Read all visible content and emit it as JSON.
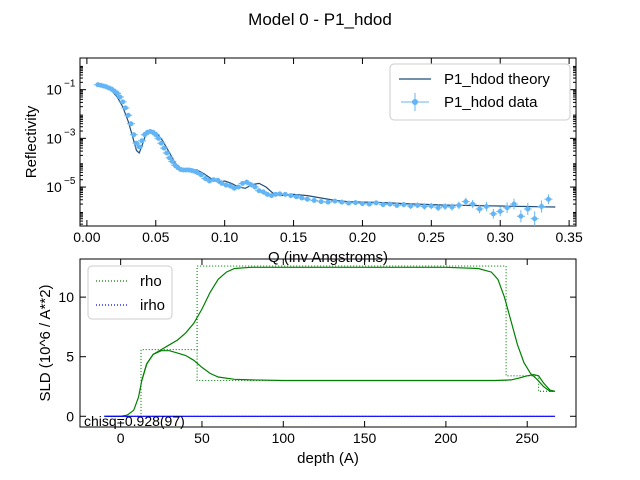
{
  "title": "Model 0 - P1_hdod",
  "chart_data": [
    {
      "type": "scatter",
      "xlabel": "Q (inv Angstroms)",
      "ylabel": "Reflectivity",
      "xlim": [
        -0.005,
        0.355
      ],
      "ylim_log10": [
        -6.6,
        0.3
      ],
      "yscale": "log",
      "legend": "top-right",
      "xticks": [
        0.0,
        0.05,
        0.1,
        0.15,
        0.2,
        0.25,
        0.3,
        0.35
      ],
      "xtick_labels": [
        "0.00",
        "0.05",
        "0.10",
        "0.15",
        "0.20",
        "0.25",
        "0.30",
        "0.35"
      ],
      "ytick_base": "10",
      "yticks_exp": [
        -1,
        -3,
        -5
      ],
      "ytick_exp_labels": [
        "−1",
        "−3",
        "−5"
      ],
      "series": [
        {
          "name": "P1_hdod theory",
          "kind": "line",
          "color": "#1f4e79",
          "x": [
            0.01,
            0.014,
            0.018,
            0.022,
            0.026,
            0.03,
            0.033,
            0.036,
            0.038,
            0.04,
            0.043,
            0.047,
            0.051,
            0.055,
            0.06,
            0.065,
            0.07,
            0.075,
            0.08,
            0.085,
            0.09,
            0.095,
            0.1,
            0.105,
            0.11,
            0.115,
            0.12,
            0.125,
            0.13,
            0.135,
            0.14,
            0.15,
            0.16,
            0.17,
            0.18,
            0.19,
            0.2,
            0.21,
            0.22,
            0.23,
            0.24,
            0.25,
            0.26,
            0.27,
            0.28,
            0.29,
            0.3,
            0.31,
            0.32,
            0.33,
            0.34
          ],
          "log10_y": [
            -0.8,
            -0.9,
            -1.05,
            -1.3,
            -1.7,
            -2.3,
            -2.9,
            -3.5,
            -3.6,
            -3.3,
            -2.8,
            -2.7,
            -2.8,
            -3.1,
            -3.6,
            -4.1,
            -4.3,
            -4.3,
            -4.3,
            -4.45,
            -4.65,
            -4.8,
            -4.75,
            -4.85,
            -5.0,
            -5.05,
            -4.9,
            -4.85,
            -5.0,
            -5.25,
            -5.35,
            -5.3,
            -5.35,
            -5.45,
            -5.55,
            -5.6,
            -5.62,
            -5.63,
            -5.65,
            -5.68,
            -5.7,
            -5.72,
            -5.74,
            -5.75,
            -5.76,
            -5.77,
            -5.78,
            -5.79,
            -5.8,
            -5.81,
            -5.82
          ]
        },
        {
          "name": "P1_hdod data",
          "kind": "errorbar",
          "color": "#64b5f6",
          "x": [
            0.008,
            0.01,
            0.012,
            0.014,
            0.016,
            0.018,
            0.02,
            0.022,
            0.024,
            0.026,
            0.028,
            0.03,
            0.032,
            0.034,
            0.036,
            0.038,
            0.04,
            0.042,
            0.044,
            0.046,
            0.048,
            0.05,
            0.052,
            0.054,
            0.056,
            0.058,
            0.06,
            0.062,
            0.064,
            0.066,
            0.068,
            0.07,
            0.072,
            0.074,
            0.076,
            0.078,
            0.08,
            0.083,
            0.086,
            0.089,
            0.092,
            0.095,
            0.098,
            0.101,
            0.104,
            0.107,
            0.11,
            0.113,
            0.116,
            0.119,
            0.122,
            0.125,
            0.128,
            0.131,
            0.134,
            0.137,
            0.14,
            0.144,
            0.148,
            0.152,
            0.156,
            0.16,
            0.165,
            0.17,
            0.175,
            0.18,
            0.185,
            0.19,
            0.195,
            0.2,
            0.205,
            0.21,
            0.215,
            0.22,
            0.225,
            0.23,
            0.235,
            0.24,
            0.245,
            0.25,
            0.255,
            0.26,
            0.265,
            0.27,
            0.275,
            0.28,
            0.285,
            0.29,
            0.295,
            0.3,
            0.305,
            0.31,
            0.315,
            0.32,
            0.325,
            0.33,
            0.335
          ],
          "log10_y": [
            -0.8,
            -0.82,
            -0.85,
            -0.88,
            -0.93,
            -0.98,
            -1.06,
            -1.15,
            -1.3,
            -1.5,
            -1.75,
            -2.05,
            -2.4,
            -2.85,
            -3.2,
            -3.35,
            -3.1,
            -2.85,
            -2.75,
            -2.72,
            -2.75,
            -2.85,
            -3.0,
            -3.2,
            -3.4,
            -3.6,
            -3.8,
            -3.95,
            -4.1,
            -4.2,
            -4.28,
            -4.3,
            -4.3,
            -4.3,
            -4.32,
            -4.35,
            -4.4,
            -4.5,
            -4.65,
            -4.75,
            -4.7,
            -4.72,
            -4.85,
            -4.92,
            -4.95,
            -5.05,
            -5.0,
            -4.85,
            -4.8,
            -4.9,
            -5.0,
            -5.15,
            -5.2,
            -5.3,
            -5.35,
            -5.3,
            -5.28,
            -5.3,
            -5.35,
            -5.4,
            -5.45,
            -5.5,
            -5.55,
            -5.6,
            -5.62,
            -5.58,
            -5.62,
            -5.66,
            -5.64,
            -5.68,
            -5.7,
            -5.65,
            -5.72,
            -5.7,
            -5.75,
            -5.72,
            -5.78,
            -5.75,
            -5.8,
            -5.78,
            -5.85,
            -5.8,
            -5.82,
            -5.75,
            -5.6,
            -5.7,
            -5.9,
            -5.8,
            -6.1,
            -6.0,
            -5.85,
            -5.7,
            -6.2,
            -5.9,
            -6.3,
            -5.8,
            -5.5
          ],
          "log10_err": [
            0.02,
            0.02,
            0.02,
            0.02,
            0.02,
            0.02,
            0.02,
            0.02,
            0.02,
            0.02,
            0.02,
            0.02,
            0.02,
            0.02,
            0.03,
            0.03,
            0.03,
            0.03,
            0.02,
            0.02,
            0.02,
            0.02,
            0.02,
            0.02,
            0.02,
            0.02,
            0.02,
            0.02,
            0.02,
            0.02,
            0.02,
            0.02,
            0.02,
            0.02,
            0.02,
            0.02,
            0.02,
            0.03,
            0.03,
            0.03,
            0.03,
            0.03,
            0.03,
            0.03,
            0.03,
            0.03,
            0.03,
            0.03,
            0.03,
            0.03,
            0.03,
            0.04,
            0.04,
            0.04,
            0.04,
            0.04,
            0.04,
            0.05,
            0.05,
            0.05,
            0.05,
            0.05,
            0.06,
            0.06,
            0.06,
            0.07,
            0.07,
            0.08,
            0.08,
            0.09,
            0.09,
            0.1,
            0.1,
            0.1,
            0.11,
            0.11,
            0.12,
            0.12,
            0.13,
            0.13,
            0.14,
            0.14,
            0.15,
            0.15,
            0.16,
            0.17,
            0.18,
            0.19,
            0.2,
            0.2,
            0.22,
            0.22,
            0.25,
            0.25,
            0.3,
            0.25,
            0.2
          ]
        }
      ]
    },
    {
      "type": "line",
      "xlabel": "depth (A)",
      "ylabel": "SLD (10^6 / A**2)",
      "xlim": [
        -25,
        280
      ],
      "ylim": [
        -0.9,
        13.2
      ],
      "legend": "top-left",
      "xticks": [
        0,
        50,
        100,
        150,
        200,
        250
      ],
      "xtick_labels": [
        "0",
        "50",
        "100",
        "150",
        "200",
        "250"
      ],
      "yticks": [
        0,
        5,
        10
      ],
      "ytick_labels": [
        "0",
        "5",
        "10"
      ],
      "annotation": "chisq=0.928(97)",
      "series": [
        {
          "name": "rho",
          "kind": "step",
          "color": "#008000",
          "dash": "1,2",
          "x": [
            -10,
            12.5,
            12.5,
            47,
            47,
            237,
            237,
            257,
            257,
            267
          ],
          "y": [
            0,
            0,
            5.6,
            5.6,
            12.6,
            12.6,
            3.4,
            3.4,
            2.1,
            2.1
          ]
        },
        {
          "name": "rho",
          "kind": "step",
          "color": "#008000",
          "dash": "1,2",
          "x": [
            47,
            47,
            237
          ],
          "y": [
            5.6,
            3.0,
            3.0
          ]
        },
        {
          "name": "rho",
          "kind": "smooth",
          "color": "#008000",
          "x": [
            -10,
            0,
            4,
            8,
            11,
            13,
            16,
            20,
            25,
            30,
            35,
            40,
            45,
            50,
            55,
            60,
            65,
            70,
            80,
            90,
            100,
            120,
            150,
            180,
            200,
            220,
            228,
            232,
            236,
            240,
            244,
            248,
            252,
            256,
            260,
            264,
            267
          ],
          "y": [
            0,
            0,
            0.1,
            0.5,
            1.6,
            3.0,
            4.4,
            5.2,
            5.6,
            6.0,
            6.4,
            7.0,
            7.8,
            9.0,
            10.4,
            11.5,
            12.1,
            12.4,
            12.5,
            12.5,
            12.5,
            12.5,
            12.5,
            12.5,
            12.5,
            12.4,
            12.1,
            11.5,
            10.0,
            8.0,
            6.0,
            4.5,
            3.6,
            3.1,
            2.5,
            2.1,
            2.1
          ]
        },
        {
          "name": "rho",
          "kind": "smooth",
          "color": "#008000",
          "x": [
            13,
            16,
            20,
            25,
            30,
            35,
            40,
            45,
            50,
            55,
            60,
            70,
            80,
            100,
            150,
            200,
            230,
            240,
            245,
            250,
            254,
            257,
            260,
            264,
            267
          ],
          "y": [
            3.0,
            4.4,
            5.2,
            5.5,
            5.5,
            5.3,
            5.1,
            4.7,
            4.1,
            3.6,
            3.3,
            3.1,
            3.05,
            3.0,
            3.0,
            3.0,
            3.0,
            3.05,
            3.2,
            3.4,
            3.5,
            3.4,
            2.8,
            2.2,
            2.1
          ]
        },
        {
          "name": "irho",
          "kind": "line",
          "color": "#0000ff",
          "dash": "1,2",
          "x": [
            -10,
            267
          ],
          "y": [
            0,
            0
          ]
        },
        {
          "name": "irho",
          "kind": "smooth",
          "color": "#0000ff",
          "x": [
            -10,
            267
          ],
          "y": [
            0,
            0
          ]
        }
      ]
    }
  ]
}
